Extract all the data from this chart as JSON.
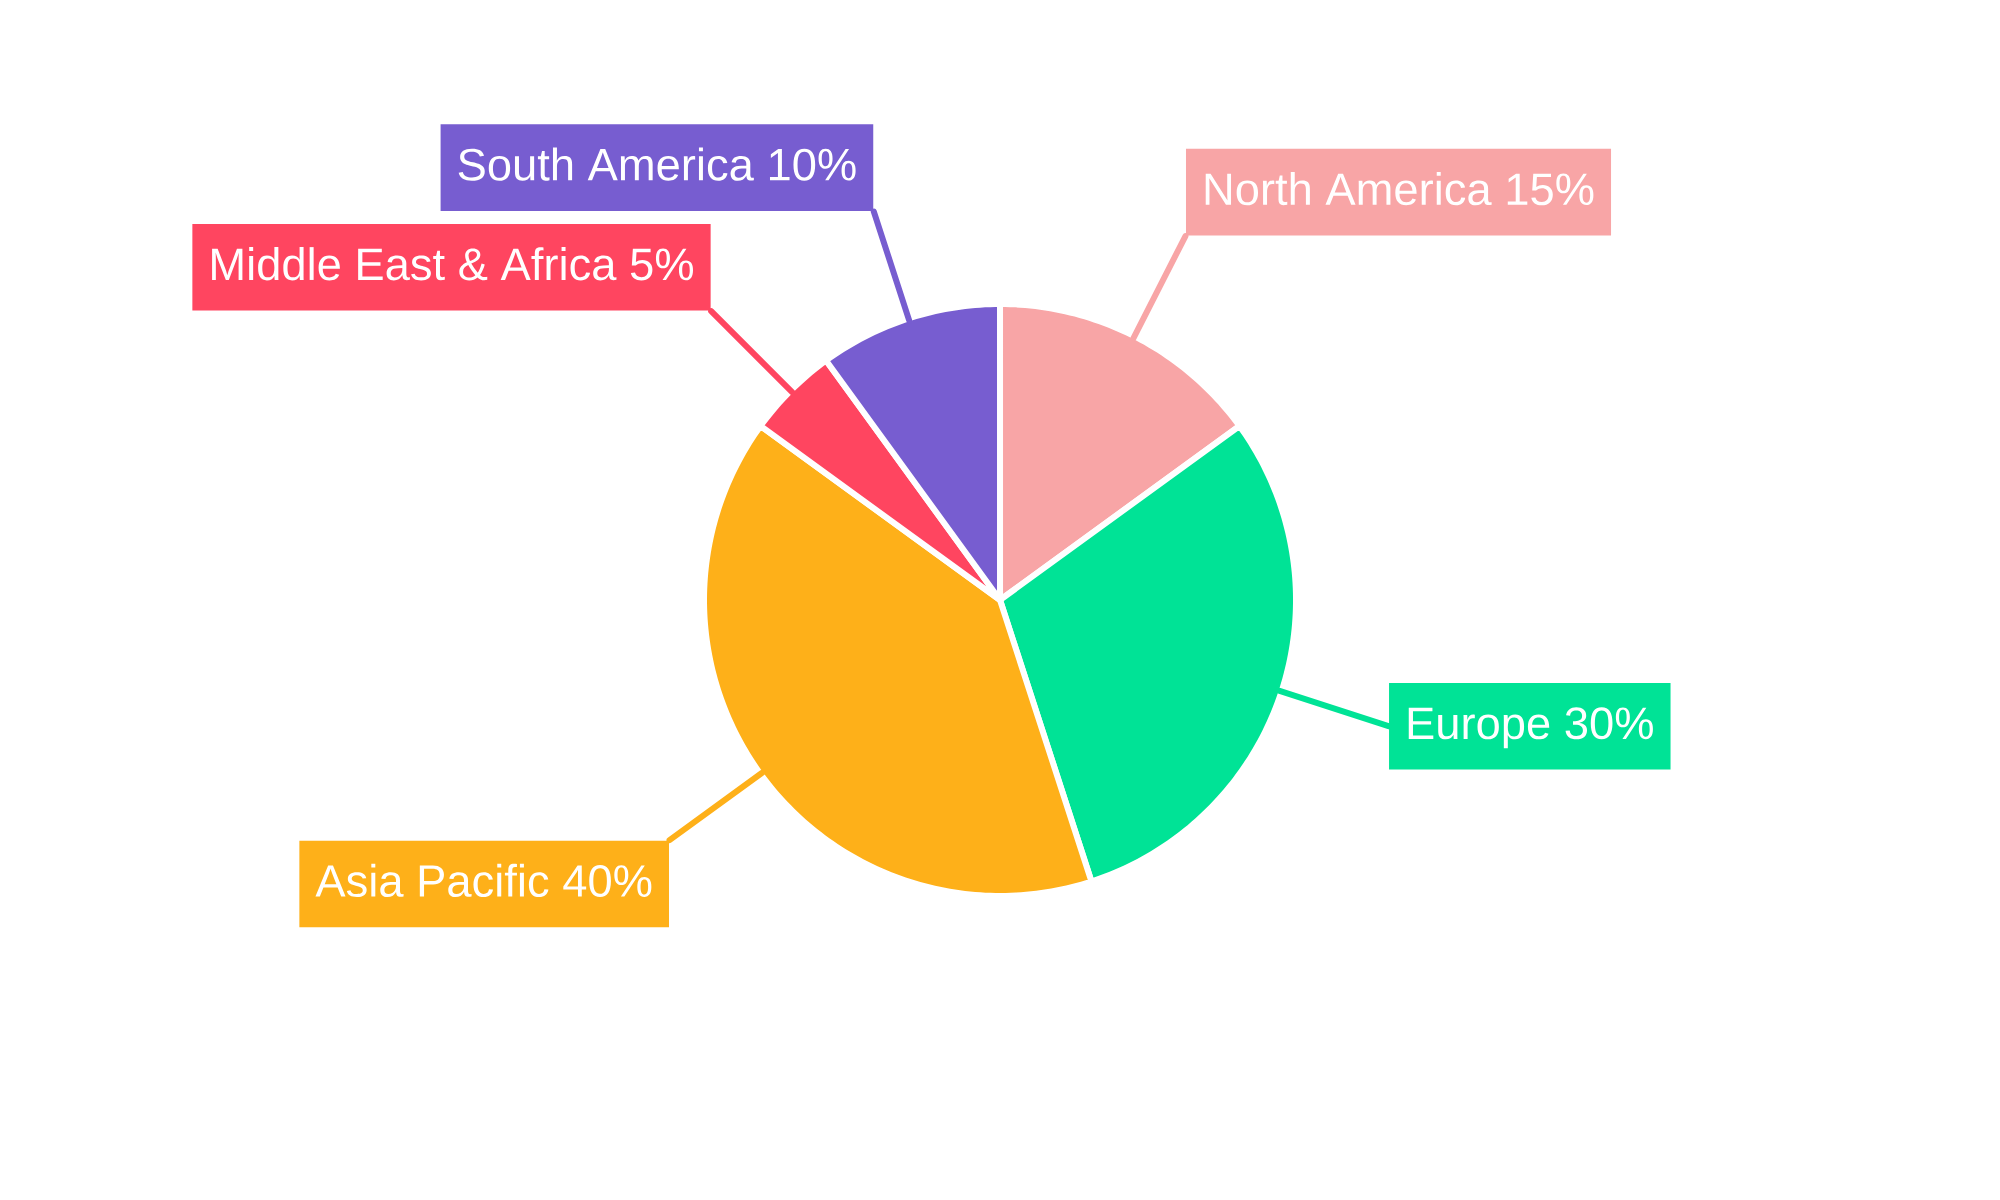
{
  "chart_data": {
    "type": "pie",
    "categories": [
      "North America",
      "Europe",
      "Asia Pacific",
      "Middle East & Africa",
      "South America"
    ],
    "values": [
      15,
      30,
      40,
      5,
      10
    ],
    "colors": [
      "#f8a5a6",
      "#00e396",
      "#feb019",
      "#ff4560",
      "#775dd0"
    ],
    "value_labels": [
      "15%",
      "30%",
      "40%",
      "5%",
      "10%"
    ]
  }
}
